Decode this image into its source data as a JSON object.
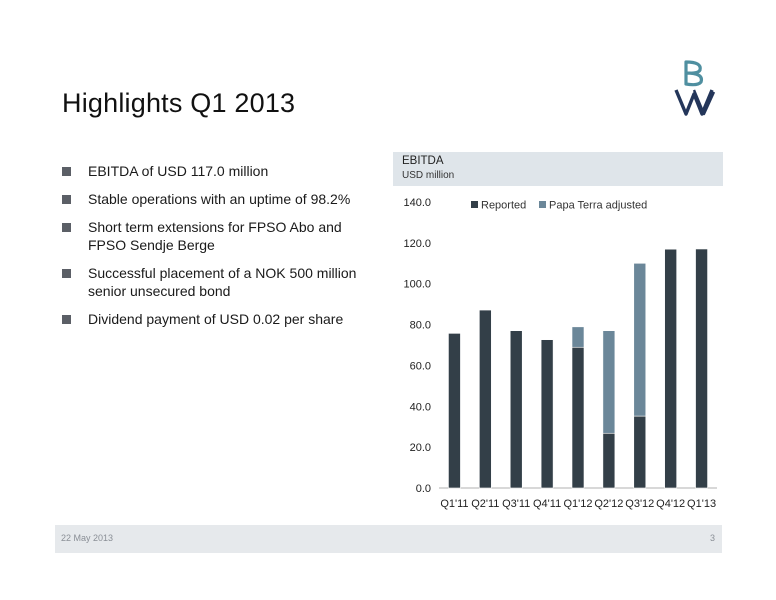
{
  "slide": {
    "title": "Highlights Q1 2013",
    "bullets": [
      {
        "text": "EBITDA of USD 117.0 million"
      },
      {
        "text": "Stable operations with an uptime of 98.2%"
      },
      {
        "text": "Short term extensions for FPSO Abo and FPSO Sendje Berge"
      },
      {
        "text": "Successful placement of a NOK 500 million senior unsecured bond"
      },
      {
        "text": "Dividend payment of USD 0.02 per share"
      }
    ]
  },
  "footer": {
    "date": "22 May 2013",
    "page": "3"
  },
  "colors": {
    "reported": "#333f48",
    "papa_terra": "#6b8799",
    "header_bg": "#dfe5ea",
    "logo_teal": "#4f8fa0",
    "logo_navy": "#24365a"
  },
  "chart_data": {
    "type": "bar",
    "stacked": true,
    "title": "EBITDA",
    "subtitle": "USD million",
    "categories": [
      "Q1'11",
      "Q2'11",
      "Q3'11",
      "Q4'11",
      "Q1'12",
      "Q2'12",
      "Q3'12",
      "Q4'12",
      "Q1'13"
    ],
    "series": [
      {
        "name": "Reported",
        "values": [
          75.7,
          87.1,
          77.0,
          72.6,
          68.9,
          26.8,
          35.2,
          116.9,
          117.0
        ]
      },
      {
        "name": "Papa Terra adjusted",
        "values": [
          0,
          0,
          0,
          0,
          10.0,
          50.2,
          74.8,
          0,
          0
        ]
      }
    ],
    "ylim": [
      0,
      140
    ],
    "yticks": [
      "0.0",
      "20.0",
      "40.0",
      "60.0",
      "80.0",
      "100.0",
      "120.0",
      "140.0"
    ],
    "legend_position": "top",
    "grid": false
  }
}
